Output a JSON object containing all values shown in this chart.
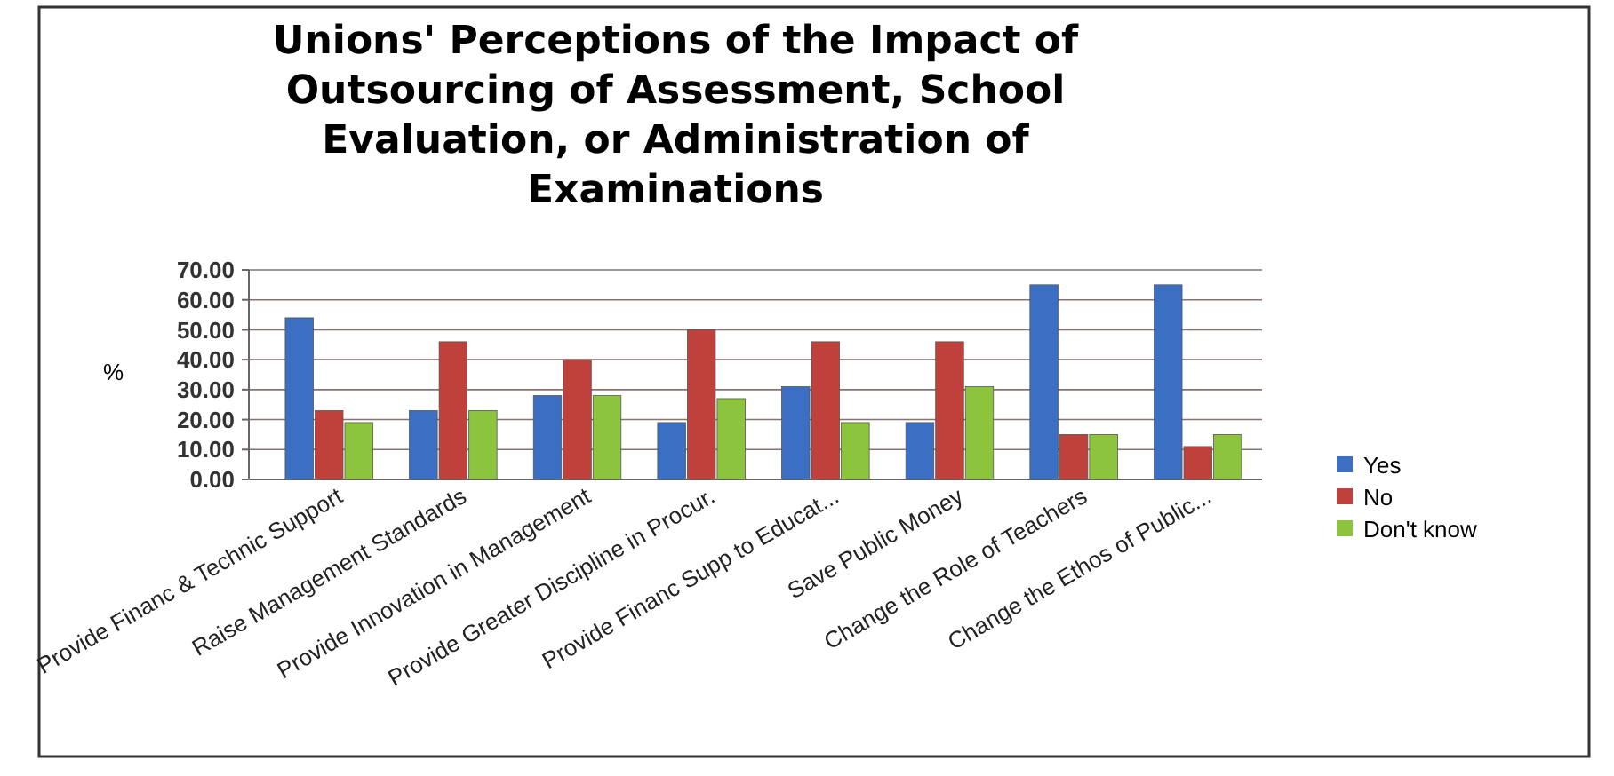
{
  "chart_data": {
    "type": "bar",
    "title": "Unions' Perceptions of the Impact of Outsourcing of Assessment, School Evaluation, or Administration of Examinations",
    "ylabel": "%",
    "categories": [
      "Provide Financ & Technic Support",
      "Raise Management Standards",
      "Provide Innovation in Management",
      "Provide Greater Discipline in Procur.",
      "Provide Financ Supp to Educat...",
      "Save Public Money",
      "Change the Role of Teachers",
      "Change the Ethos of Public..."
    ],
    "series": [
      {
        "name": "Yes",
        "color": "#3a6fc4",
        "values": [
          54,
          23,
          28,
          19,
          31,
          19,
          65,
          65
        ]
      },
      {
        "name": "No",
        "color": "#c0403c",
        "values": [
          23,
          46,
          40,
          50,
          46,
          46,
          15,
          11
        ]
      },
      {
        "name": "Don't know",
        "color": "#8cc43e",
        "values": [
          19,
          23,
          28,
          27,
          19,
          31,
          15,
          15
        ]
      }
    ],
    "ylim": [
      0,
      70
    ],
    "yticks": [
      {
        "value": 0,
        "label": "0.00"
      },
      {
        "value": 10,
        "label": "10.00"
      },
      {
        "value": 20,
        "label": "20.00"
      },
      {
        "value": 30,
        "label": "30.00"
      },
      {
        "value": 40,
        "label": "40.00"
      },
      {
        "value": 50,
        "label": "50.00"
      },
      {
        "value": 60,
        "label": "60.00"
      },
      {
        "value": 70,
        "label": "70.00"
      }
    ],
    "grid": "y",
    "legend": "right"
  }
}
